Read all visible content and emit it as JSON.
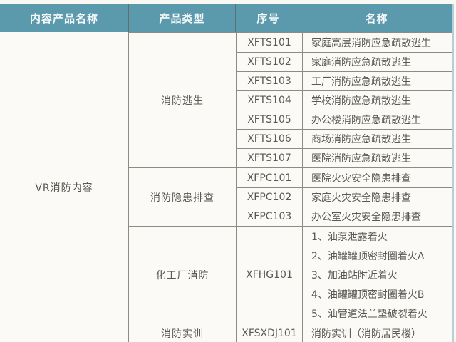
{
  "colors": {
    "header-bg": "#5b99ad",
    "header-text": "#f4f8f9",
    "page-bg": "#faf8f3",
    "cell-bg": "#fcfaf6",
    "border": "#8e8b85",
    "text": "#5b5854",
    "edge-blue": "#b5d0da",
    "bottom-blue": "#7ea9bb"
  },
  "table": {
    "headers": [
      "内容产品名称",
      "产品类型",
      "序号",
      "名称"
    ],
    "content_name": "VR消防内容",
    "groups": [
      {
        "type": "消防逃生",
        "items": [
          {
            "code": "XFTS101",
            "name": "家庭高层消防应急疏散逃生"
          },
          {
            "code": "XFTS102",
            "name": "家庭消防应急疏散逃生"
          },
          {
            "code": "XFTS103",
            "name": "工厂消防应急疏散逃生"
          },
          {
            "code": "XFTS104",
            "name": "学校消防应急疏散逃生"
          },
          {
            "code": "XFTS105",
            "name": "办公楼消防应急疏散逃生"
          },
          {
            "code": "XFTS106",
            "name": "商场消防应急疏散逃生"
          },
          {
            "code": "XFTS107",
            "name": "医院消防应急疏散逃生"
          }
        ]
      },
      {
        "type": "消防隐患排查",
        "items": [
          {
            "code": "XFPC101",
            "name": "医院火灾安全隐患排查"
          },
          {
            "code": "XFPC102",
            "name": "家庭火灾安全隐患排查"
          },
          {
            "code": "XFPC103",
            "name": "办公室火灾安全隐患排查"
          }
        ]
      },
      {
        "type": "化工厂消防",
        "code": "XFHG101",
        "lines": [
          "1、油泵泄露着火",
          "2、油罐罐顶密封圈着火A",
          "3、加油站附近着火",
          "4、油罐罐顶密封圈着火B",
          "5、油管道法兰垫破裂着火"
        ]
      },
      {
        "type": "消防实训",
        "items": [
          {
            "code": "XFSXDJ101",
            "name": "消防实训（消防居民楼）"
          }
        ]
      }
    ]
  }
}
